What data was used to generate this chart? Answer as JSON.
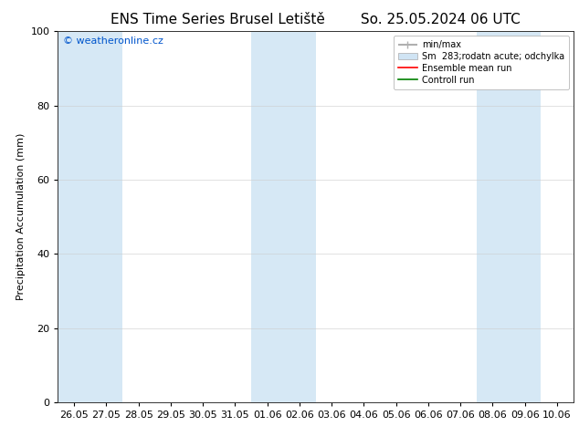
{
  "title": "ENS Time Series Brusel Letiště",
  "title_right": "So. 25.05.2024 06 UTC",
  "ylabel": "Precipitation Accumulation (mm)",
  "watermark": "© weatheronline.cz",
  "ylim": [
    0,
    100
  ],
  "yticks": [
    0,
    20,
    40,
    60,
    80,
    100
  ],
  "x_labels": [
    "26.05",
    "27.05",
    "28.05",
    "29.05",
    "30.05",
    "31.05",
    "01.06",
    "02.06",
    "03.06",
    "04.06",
    "05.06",
    "06.06",
    "07.06",
    "08.06",
    "09.06",
    "10.06"
  ],
  "shaded_columns": [
    0,
    1,
    6,
    7,
    13,
    14
  ],
  "shade_color": "#d6e8f5",
  "background_color": "#ffffff",
  "plot_bg_color": "#ffffff",
  "legend_items": [
    {
      "label": "min/max",
      "color": "#b0b0b0",
      "type": "hbar"
    },
    {
      "label": "Sm  283;rodatn acute; odchylka",
      "color": "#d0e4f4",
      "type": "bar"
    },
    {
      "label": "Ensemble mean run",
      "color": "#ff0000",
      "type": "line"
    },
    {
      "label": "Controll run",
      "color": "#008000",
      "type": "line"
    }
  ],
  "title_fontsize": 11,
  "axis_fontsize": 8,
  "ylabel_fontsize": 8,
  "watermark_color": "#0055cc",
  "watermark_fontsize": 8
}
